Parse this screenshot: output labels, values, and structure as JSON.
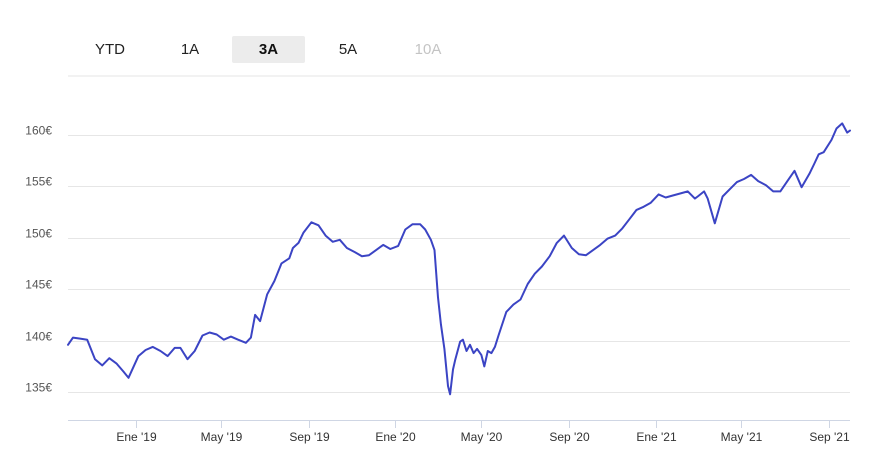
{
  "range_tabs": [
    {
      "label": "YTD",
      "state": "normal"
    },
    {
      "label": "1A",
      "state": "normal"
    },
    {
      "label": "3A",
      "state": "active"
    },
    {
      "label": "5A",
      "state": "normal"
    },
    {
      "label": "10A",
      "state": "disabled"
    }
  ],
  "colors": {
    "line": "#3b44c4",
    "grid": "#e6e6e6",
    "axis": "#cfd6e4",
    "active_tab": "#ececec"
  },
  "chart_data": {
    "type": "line",
    "title": "",
    "xlabel": "",
    "ylabel": "",
    "ylim": [
      132.3,
      165.7
    ],
    "xlim": [
      "2018-09-28",
      "2021-10-01"
    ],
    "y_ticks": [
      135,
      140,
      145,
      150,
      155,
      160
    ],
    "y_tick_labels": [
      "135€",
      "140€",
      "145€",
      "150€",
      "155€",
      "160€"
    ],
    "x_ticks": [
      "2019-01-01",
      "2019-05-01",
      "2019-09-01",
      "2020-01-01",
      "2020-05-01",
      "2020-09-01",
      "2021-01-01",
      "2021-05-01",
      "2021-09-01"
    ],
    "x_tick_labels": [
      "Ene '19",
      "May '19",
      "Sep '19",
      "Ene '20",
      "May '20",
      "Sep '20",
      "Ene '21",
      "May '21",
      "Sep '21"
    ],
    "grid": true,
    "legend": "none",
    "series": [
      {
        "x": [
          "2018-09-28",
          "2018-10-05",
          "2018-10-15",
          "2018-10-25",
          "2018-11-05",
          "2018-11-15",
          "2018-11-25",
          "2018-12-05",
          "2018-12-15",
          "2018-12-22",
          "2019-01-05",
          "2019-01-15",
          "2019-01-25",
          "2019-02-05",
          "2019-02-15",
          "2019-02-25",
          "2019-03-05",
          "2019-03-15",
          "2019-03-25",
          "2019-04-05",
          "2019-04-15",
          "2019-04-25",
          "2019-05-05",
          "2019-05-15",
          "2019-05-25",
          "2019-06-05",
          "2019-06-12",
          "2019-06-18",
          "2019-06-25",
          "2019-07-05",
          "2019-07-15",
          "2019-07-25",
          "2019-08-05",
          "2019-08-10",
          "2019-08-18",
          "2019-08-25",
          "2019-09-05",
          "2019-09-15",
          "2019-09-25",
          "2019-10-05",
          "2019-10-15",
          "2019-10-25",
          "2019-11-05",
          "2019-11-15",
          "2019-11-25",
          "2019-12-05",
          "2019-12-15",
          "2019-12-25",
          "2020-01-05",
          "2020-01-15",
          "2020-01-25",
          "2020-02-05",
          "2020-02-12",
          "2020-02-20",
          "2020-02-25",
          "2020-03-01",
          "2020-03-05",
          "2020-03-10",
          "2020-03-15",
          "2020-03-18",
          "2020-03-22",
          "2020-03-25",
          "2020-04-01",
          "2020-04-05",
          "2020-04-10",
          "2020-04-15",
          "2020-04-20",
          "2020-04-25",
          "2020-05-01",
          "2020-05-05",
          "2020-05-10",
          "2020-05-15",
          "2020-05-20",
          "2020-05-25",
          "2020-06-05",
          "2020-06-15",
          "2020-06-25",
          "2020-07-05",
          "2020-07-15",
          "2020-07-25",
          "2020-08-05",
          "2020-08-15",
          "2020-08-25",
          "2020-09-05",
          "2020-09-15",
          "2020-09-25",
          "2020-10-05",
          "2020-10-15",
          "2020-10-25",
          "2020-11-05",
          "2020-11-15",
          "2020-11-25",
          "2020-12-05",
          "2020-12-15",
          "2020-12-25",
          "2021-01-05",
          "2021-01-15",
          "2021-01-25",
          "2021-02-05",
          "2021-02-15",
          "2021-02-25",
          "2021-03-01",
          "2021-03-10",
          "2021-03-15",
          "2021-03-25",
          "2021-04-05",
          "2021-04-15",
          "2021-04-25",
          "2021-05-05",
          "2021-05-15",
          "2021-05-25",
          "2021-06-05",
          "2021-06-15",
          "2021-06-25",
          "2021-07-05",
          "2021-07-15",
          "2021-07-25",
          "2021-08-05",
          "2021-08-12",
          "2021-08-18",
          "2021-08-25",
          "2021-09-05",
          "2021-09-12",
          "2021-09-20",
          "2021-09-27",
          "2021-10-01"
        ],
        "y": [
          139.6,
          140.3,
          140.2,
          140.1,
          138.2,
          137.6,
          138.3,
          137.8,
          137.0,
          136.4,
          138.5,
          139.1,
          139.4,
          139.0,
          138.5,
          139.3,
          139.3,
          138.2,
          139.0,
          140.5,
          140.8,
          140.6,
          140.1,
          140.4,
          140.1,
          139.8,
          140.3,
          142.5,
          141.9,
          144.5,
          145.8,
          147.5,
          148.0,
          149.0,
          149.5,
          150.5,
          151.5,
          151.2,
          150.2,
          149.6,
          149.8,
          149.0,
          148.6,
          148.2,
          148.3,
          148.8,
          149.3,
          148.9,
          149.2,
          150.8,
          151.3,
          151.3,
          150.8,
          149.8,
          148.8,
          144.2,
          141.6,
          139.2,
          135.6,
          134.8,
          137.2,
          138.1,
          139.9,
          140.1,
          139.0,
          139.6,
          138.8,
          139.2,
          138.6,
          137.5,
          139.0,
          138.8,
          139.4,
          140.5,
          142.8,
          143.5,
          144.0,
          145.5,
          146.5,
          147.2,
          148.2,
          149.5,
          150.2,
          149.0,
          148.4,
          148.3,
          148.8,
          149.3,
          149.9,
          150.2,
          150.9,
          151.8,
          152.7,
          153.0,
          153.4,
          154.2,
          153.9,
          154.1,
          154.3,
          154.5,
          153.8,
          154.0,
          154.5,
          153.8,
          151.4,
          154.0,
          154.7,
          155.4,
          155.7,
          156.1,
          155.5,
          155.1,
          154.5,
          154.5,
          155.5,
          156.5,
          154.9,
          156.2,
          157.2,
          158.1,
          158.3,
          159.5,
          160.6,
          161.1,
          160.2,
          160.4
        ]
      }
    ]
  }
}
